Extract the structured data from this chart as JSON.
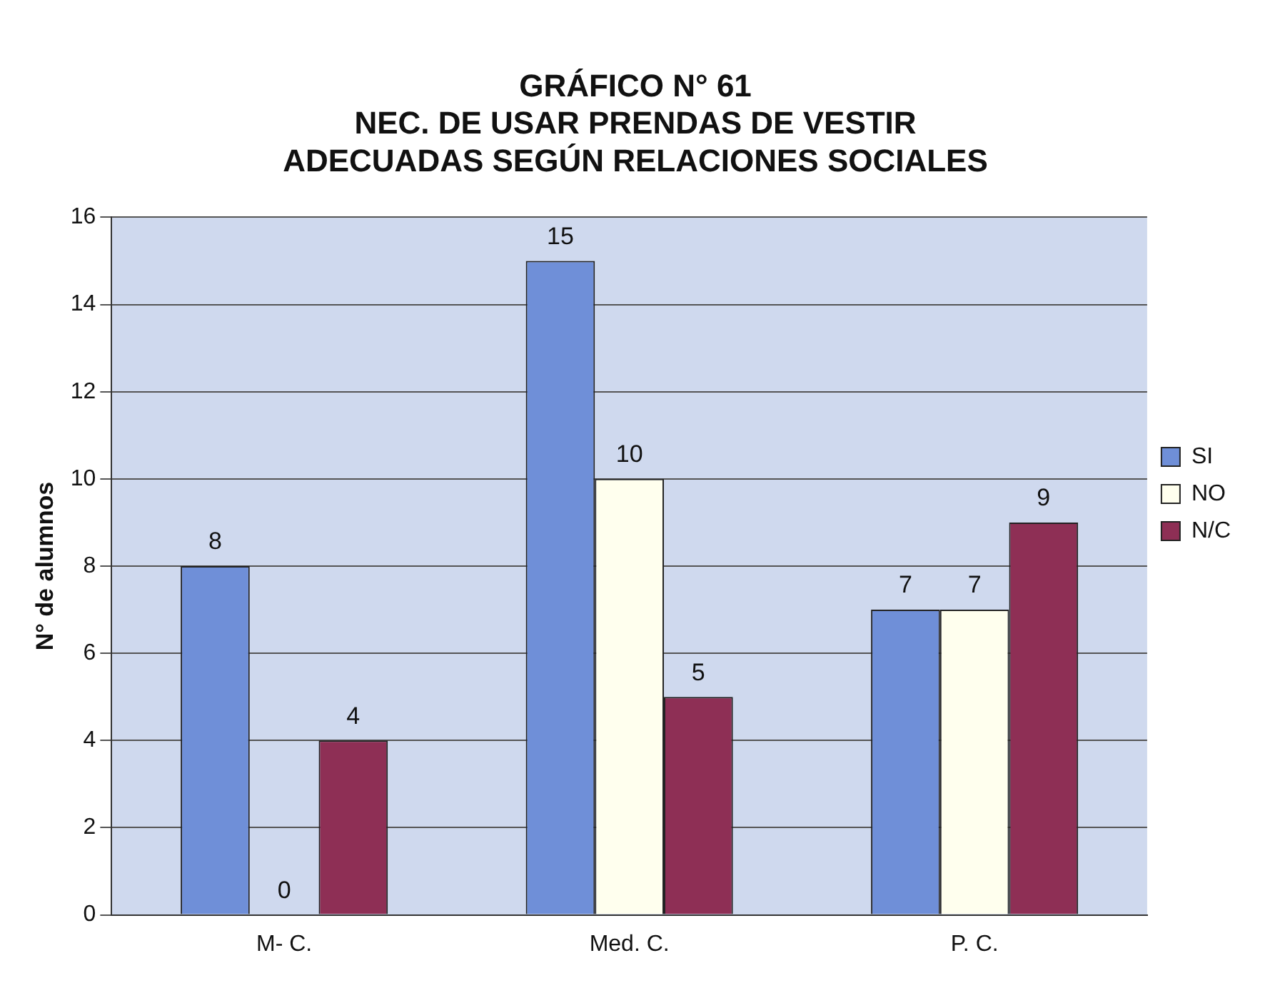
{
  "chart_data": {
    "type": "bar",
    "title": "GRÁFICO N° 61\nNEC. DE USAR PRENDAS DE VESTIR\nADECUADAS SEGÚN RELACIONES SOCIALES",
    "ylabel": "N° de alumnos",
    "categories": [
      "M- C.",
      "Med. C.",
      "P. C."
    ],
    "series": [
      {
        "name": "SI",
        "color": "#6f8fd8",
        "values": [
          8,
          15,
          7
        ]
      },
      {
        "name": "NO",
        "color": "#ffffee",
        "values": [
          0,
          10,
          7
        ]
      },
      {
        "name": "N/C",
        "color": "#8e2f55",
        "values": [
          4,
          5,
          9
        ]
      }
    ],
    "ylim": [
      0,
      16
    ],
    "yticks": [
      0,
      2,
      4,
      6,
      8,
      10,
      12,
      14,
      16
    ],
    "grid": "y",
    "legend": "right",
    "data_labels": true
  }
}
